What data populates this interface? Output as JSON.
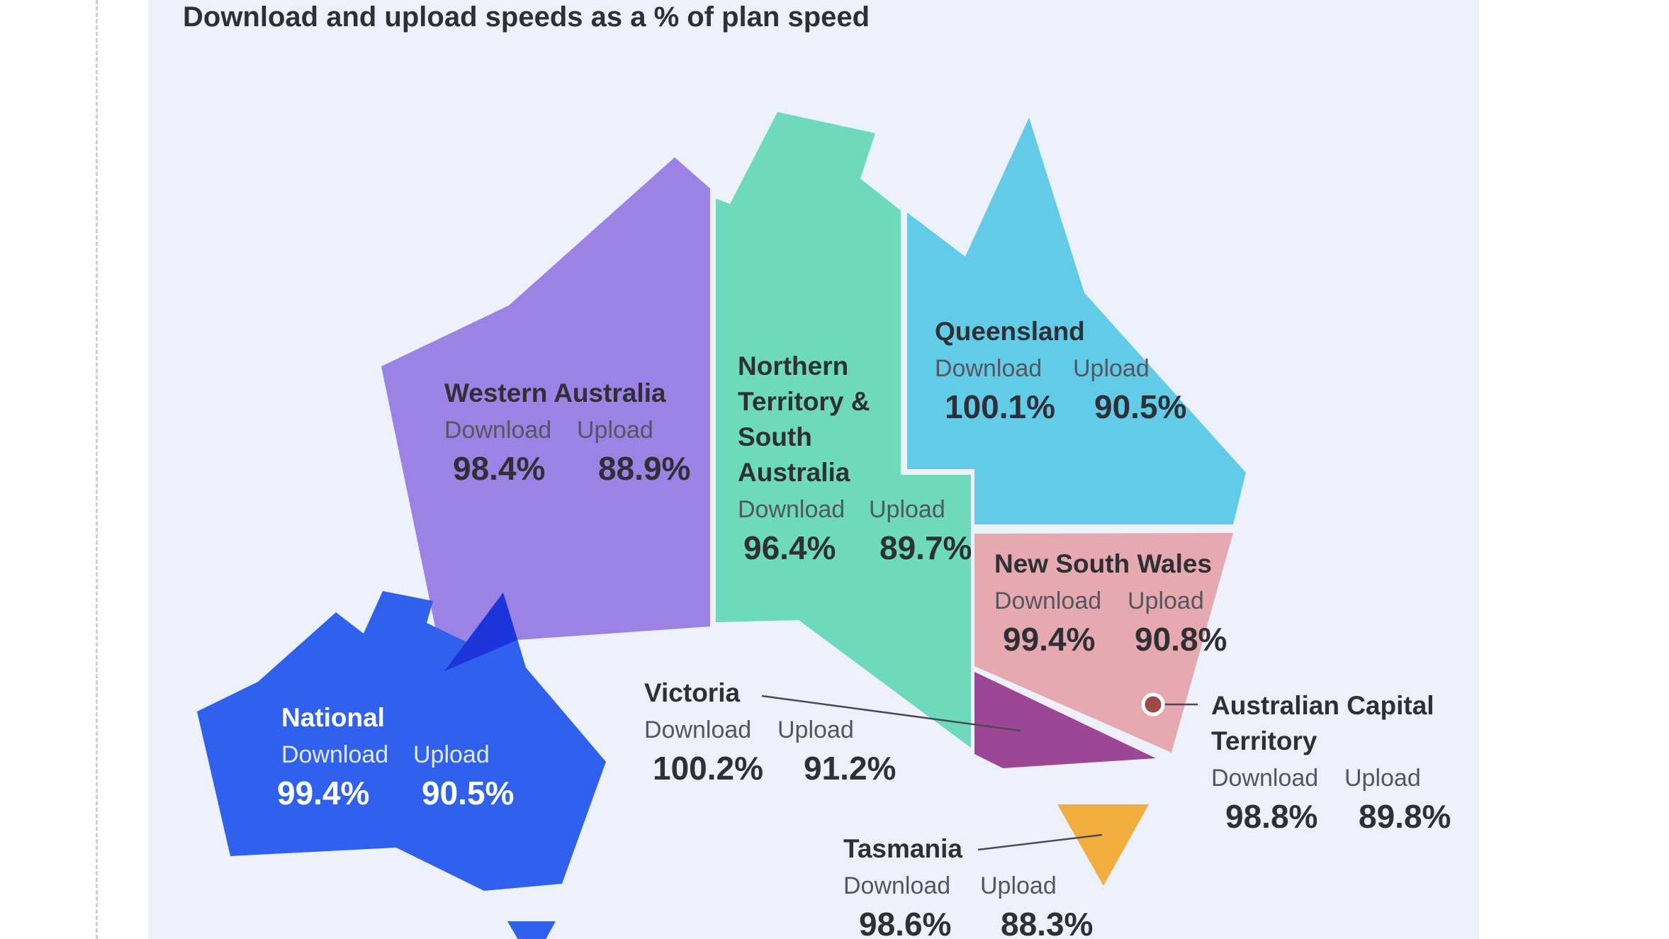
{
  "title": "Download and upload speeds as a % of plan speed",
  "colors": {
    "background": "#edf1fb",
    "western_australia": "#9b82e4",
    "northern_territory_south_australia": "#6cdabb",
    "queensland": "#62cbe8",
    "new_south_wales": "#e6a9b0",
    "victoria": "#9d4696",
    "australian_capital_territory": "#9c4a4a",
    "tasmania": "#f3ae40",
    "national": "#2f60ee"
  },
  "labels": {
    "download": "Download",
    "upload": "Upload"
  },
  "regions": {
    "western_australia": {
      "name": "Western Australia",
      "download": "98.4%",
      "upload": "88.9%"
    },
    "northern_territory_south_australia": {
      "name": "Northern Territory & South Australia",
      "download": "96.4%",
      "upload": "89.7%"
    },
    "queensland": {
      "name": "Queensland",
      "download": "100.1%",
      "upload": "90.5%"
    },
    "new_south_wales": {
      "name": "New South Wales",
      "download": "99.4%",
      "upload": "90.8%"
    },
    "victoria": {
      "name": "Victoria",
      "download": "100.2%",
      "upload": "91.2%"
    },
    "australian_capital_territory": {
      "name": "Australian Capital Territory",
      "download": "98.8%",
      "upload": "89.8%"
    },
    "tasmania": {
      "name": "Tasmania",
      "download": "98.6%",
      "upload": "88.3%"
    },
    "national": {
      "name": "National",
      "download": "99.4%",
      "upload": "90.5%"
    }
  }
}
